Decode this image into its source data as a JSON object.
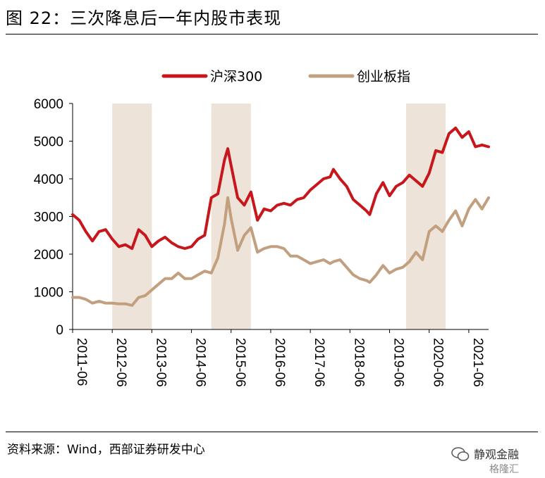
{
  "figure": {
    "title": "图 22：三次降息后一年内股市表现",
    "source": "资料来源：Wind，西部证券研发中心",
    "watermark_main": "静观金融",
    "watermark_sub": "格隆汇"
  },
  "chart_data": {
    "type": "line",
    "ylim": [
      0,
      6000
    ],
    "yticks": [
      0,
      1000,
      2000,
      3000,
      4000,
      5000,
      6000
    ],
    "xticks": [
      "2011-06",
      "2012-06",
      "2013-06",
      "2014-06",
      "2015-06",
      "2016-06",
      "2017-06",
      "2018-06",
      "2019-06",
      "2020-06",
      "2021-06"
    ],
    "legend_position": "top",
    "shaded_periods": [
      {
        "start": "2012-06",
        "end": "2013-06"
      },
      {
        "start": "2014-12",
        "end": "2015-12"
      },
      {
        "start": "2019-11",
        "end": "2020-11"
      }
    ],
    "colors": {
      "shade": "#eee3d8"
    },
    "series": [
      {
        "name": "沪深300",
        "color": "#c8161d",
        "points": [
          [
            "2011-06",
            3050
          ],
          [
            "2011-08",
            2900
          ],
          [
            "2011-10",
            2600
          ],
          [
            "2011-12",
            2350
          ],
          [
            "2012-02",
            2600
          ],
          [
            "2012-04",
            2650
          ],
          [
            "2012-06",
            2400
          ],
          [
            "2012-08",
            2200
          ],
          [
            "2012-10",
            2250
          ],
          [
            "2012-12",
            2150
          ],
          [
            "2013-02",
            2650
          ],
          [
            "2013-04",
            2500
          ],
          [
            "2013-06",
            2200
          ],
          [
            "2013-08",
            2350
          ],
          [
            "2013-10",
            2450
          ],
          [
            "2013-12",
            2300
          ],
          [
            "2014-02",
            2200
          ],
          [
            "2014-04",
            2150
          ],
          [
            "2014-06",
            2200
          ],
          [
            "2014-08",
            2400
          ],
          [
            "2014-10",
            2500
          ],
          [
            "2014-12",
            3500
          ],
          [
            "2015-02",
            3600
          ],
          [
            "2015-04",
            4500
          ],
          [
            "2015-05",
            4800
          ],
          [
            "2015-06",
            4350
          ],
          [
            "2015-08",
            3500
          ],
          [
            "2015-10",
            3300
          ],
          [
            "2015-12",
            3650
          ],
          [
            "2016-02",
            2900
          ],
          [
            "2016-04",
            3200
          ],
          [
            "2016-06",
            3150
          ],
          [
            "2016-08",
            3300
          ],
          [
            "2016-10",
            3350
          ],
          [
            "2016-12",
            3300
          ],
          [
            "2017-02",
            3450
          ],
          [
            "2017-04",
            3500
          ],
          [
            "2017-06",
            3700
          ],
          [
            "2017-08",
            3850
          ],
          [
            "2017-10",
            4000
          ],
          [
            "2017-12",
            4050
          ],
          [
            "2018-01",
            4250
          ],
          [
            "2018-03",
            4000
          ],
          [
            "2018-05",
            3800
          ],
          [
            "2018-07",
            3450
          ],
          [
            "2018-09",
            3300
          ],
          [
            "2018-11",
            3150
          ],
          [
            "2018-12",
            3050
          ],
          [
            "2019-02",
            3600
          ],
          [
            "2019-04",
            3900
          ],
          [
            "2019-06",
            3550
          ],
          [
            "2019-08",
            3800
          ],
          [
            "2019-10",
            3900
          ],
          [
            "2019-12",
            4100
          ],
          [
            "2020-02",
            3950
          ],
          [
            "2020-04",
            3800
          ],
          [
            "2020-06",
            4150
          ],
          [
            "2020-08",
            4750
          ],
          [
            "2020-10",
            4700
          ],
          [
            "2020-12",
            5200
          ],
          [
            "2021-02",
            5350
          ],
          [
            "2021-04",
            5100
          ],
          [
            "2021-06",
            5250
          ],
          [
            "2021-08",
            4850
          ],
          [
            "2021-10",
            4900
          ],
          [
            "2021-12",
            4850
          ]
        ]
      },
      {
        "name": "创业板指",
        "color": "#c2a07f",
        "points": [
          [
            "2011-06",
            850
          ],
          [
            "2011-08",
            850
          ],
          [
            "2011-10",
            800
          ],
          [
            "2011-12",
            700
          ],
          [
            "2012-02",
            750
          ],
          [
            "2012-04",
            700
          ],
          [
            "2012-06",
            700
          ],
          [
            "2012-08",
            680
          ],
          [
            "2012-10",
            680
          ],
          [
            "2012-12",
            640
          ],
          [
            "2013-02",
            850
          ],
          [
            "2013-04",
            900
          ],
          [
            "2013-06",
            1050
          ],
          [
            "2013-08",
            1200
          ],
          [
            "2013-10",
            1350
          ],
          [
            "2013-12",
            1350
          ],
          [
            "2014-02",
            1500
          ],
          [
            "2014-04",
            1350
          ],
          [
            "2014-06",
            1350
          ],
          [
            "2014-08",
            1450
          ],
          [
            "2014-10",
            1550
          ],
          [
            "2014-12",
            1500
          ],
          [
            "2015-02",
            1900
          ],
          [
            "2015-04",
            2800
          ],
          [
            "2015-05",
            3500
          ],
          [
            "2015-06",
            2950
          ],
          [
            "2015-08",
            2100
          ],
          [
            "2015-10",
            2500
          ],
          [
            "2015-12",
            2700
          ],
          [
            "2016-02",
            2050
          ],
          [
            "2016-04",
            2150
          ],
          [
            "2016-06",
            2200
          ],
          [
            "2016-08",
            2200
          ],
          [
            "2016-10",
            2150
          ],
          [
            "2016-12",
            1950
          ],
          [
            "2017-02",
            1950
          ],
          [
            "2017-04",
            1850
          ],
          [
            "2017-06",
            1750
          ],
          [
            "2017-08",
            1800
          ],
          [
            "2017-10",
            1850
          ],
          [
            "2017-12",
            1750
          ],
          [
            "2018-01",
            1800
          ],
          [
            "2018-03",
            1850
          ],
          [
            "2018-05",
            1650
          ],
          [
            "2018-07",
            1450
          ],
          [
            "2018-09",
            1350
          ],
          [
            "2018-11",
            1300
          ],
          [
            "2018-12",
            1250
          ],
          [
            "2019-02",
            1450
          ],
          [
            "2019-04",
            1700
          ],
          [
            "2019-06",
            1500
          ],
          [
            "2019-08",
            1600
          ],
          [
            "2019-10",
            1650
          ],
          [
            "2019-12",
            1800
          ],
          [
            "2020-02",
            2050
          ],
          [
            "2020-04",
            1850
          ],
          [
            "2020-06",
            2600
          ],
          [
            "2020-08",
            2750
          ],
          [
            "2020-10",
            2600
          ],
          [
            "2020-12",
            2900
          ],
          [
            "2021-02",
            3150
          ],
          [
            "2021-04",
            2750
          ],
          [
            "2021-06",
            3200
          ],
          [
            "2021-08",
            3450
          ],
          [
            "2021-10",
            3200
          ],
          [
            "2021-12",
            3500
          ]
        ]
      }
    ]
  }
}
